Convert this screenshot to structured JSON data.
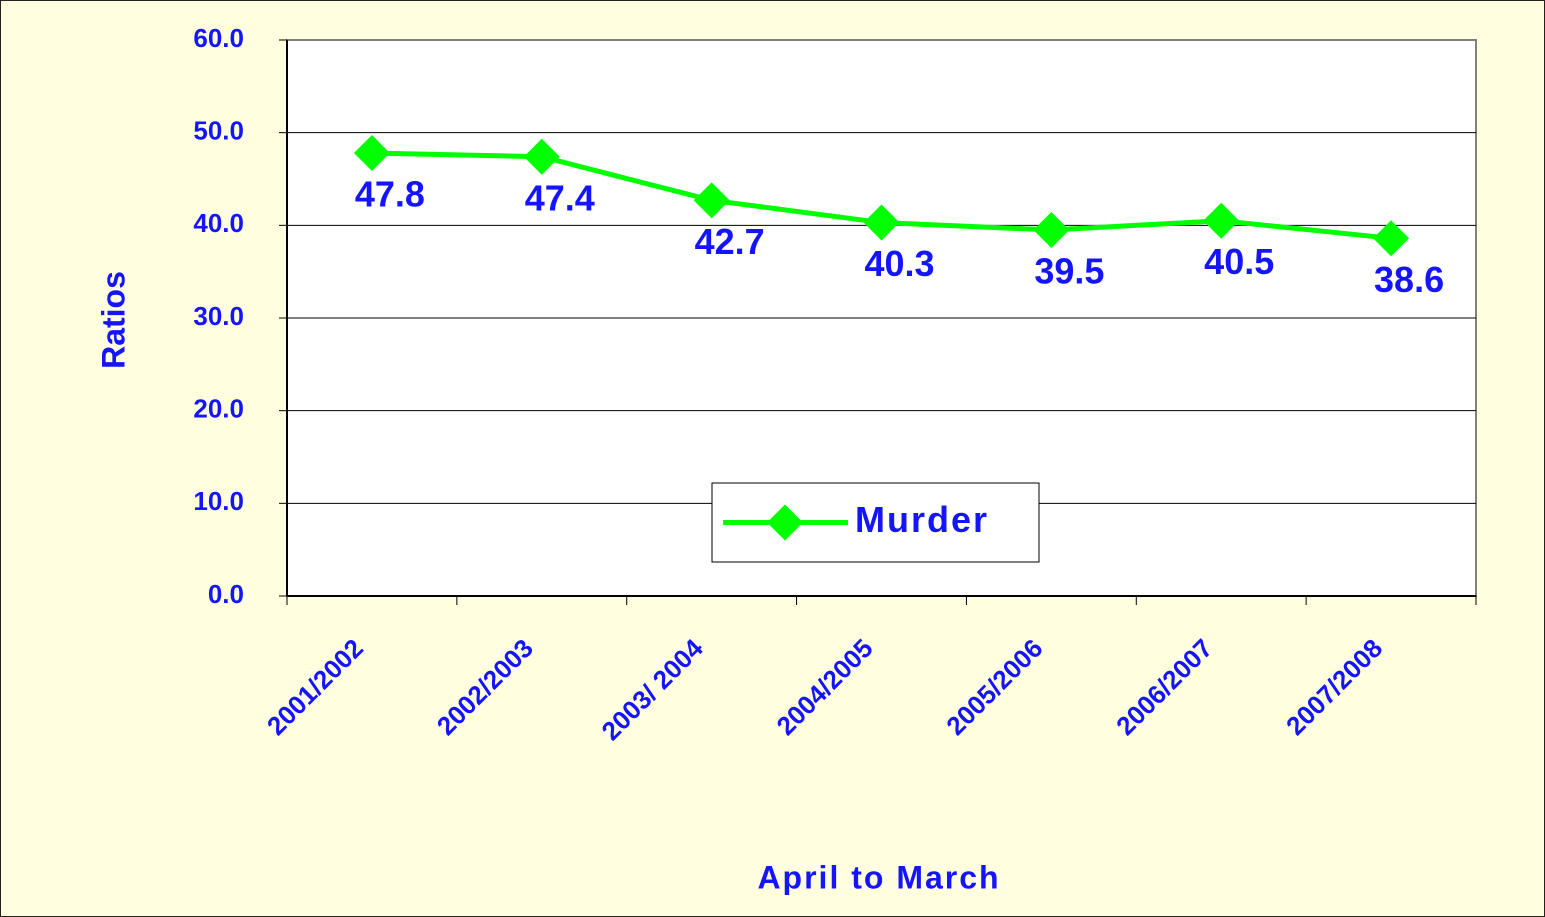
{
  "chart_data": {
    "type": "line",
    "x_label": "April to March",
    "y_label": "Ratios",
    "categories": [
      "2001/2002",
      "2002/2003",
      "2003/ 2004",
      "2004/2005",
      "2005/2006",
      "2006/2007",
      "2007/2008"
    ],
    "series": [
      {
        "name": "Murder",
        "color": "#00ff00",
        "values": [
          47.8,
          47.4,
          42.7,
          40.3,
          39.5,
          40.5,
          38.6
        ]
      }
    ],
    "ylim": [
      0,
      60
    ],
    "yticks": [
      {
        "value": 0,
        "label": "0.0"
      },
      {
        "value": 10,
        "label": "10.0"
      },
      {
        "value": 20,
        "label": "20.0"
      },
      {
        "value": 30,
        "label": "30.0"
      },
      {
        "value": 40,
        "label": "40.0"
      },
      {
        "value": 50,
        "label": "50.0"
      },
      {
        "value": 60,
        "label": "60.0"
      }
    ],
    "grid": true,
    "legend": "bottom"
  }
}
